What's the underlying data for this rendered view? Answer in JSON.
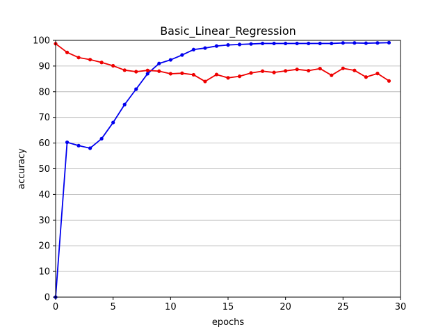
{
  "chart_data": {
    "type": "line",
    "title": "Basic_Linear_Regression",
    "xlabel": "epochs",
    "ylabel": "accuracy",
    "xlim": [
      0,
      30
    ],
    "ylim": [
      0,
      100
    ],
    "xticks": [
      0,
      5,
      10,
      15,
      20,
      25,
      30
    ],
    "yticks": [
      0,
      10,
      20,
      30,
      40,
      50,
      60,
      70,
      80,
      90,
      100
    ],
    "grid": "y-axis horizontal lines",
    "legend": "none",
    "x": [
      0,
      1,
      2,
      3,
      4,
      5,
      6,
      7,
      8,
      9,
      10,
      11,
      12,
      13,
      14,
      15,
      16,
      17,
      18,
      19,
      20,
      21,
      22,
      23,
      24,
      25,
      26,
      27,
      28,
      29
    ],
    "series": [
      {
        "color": "#0000ee",
        "values": [
          0,
          60.3,
          59.0,
          58.0,
          61.7,
          68.0,
          75.0,
          81.0,
          87.0,
          91.0,
          92.4,
          94.3,
          96.4,
          97.0,
          97.8,
          98.2,
          98.4,
          98.6,
          98.8,
          98.8,
          98.8,
          98.8,
          98.8,
          98.8,
          98.8,
          99.0,
          99.0,
          98.9,
          99.0,
          99.1
        ]
      },
      {
        "color": "#ee0000",
        "values": [
          98.7,
          95.3,
          93.3,
          92.5,
          91.4,
          90.1,
          88.4,
          87.8,
          88.3,
          88.0,
          87.0,
          87.2,
          86.6,
          84.0,
          86.7,
          85.4,
          86.0,
          87.3,
          88.0,
          87.5,
          88.1,
          88.7,
          88.2,
          89.0,
          86.4,
          89.1,
          88.3,
          85.7,
          87.1,
          84.2
        ]
      }
    ]
  }
}
